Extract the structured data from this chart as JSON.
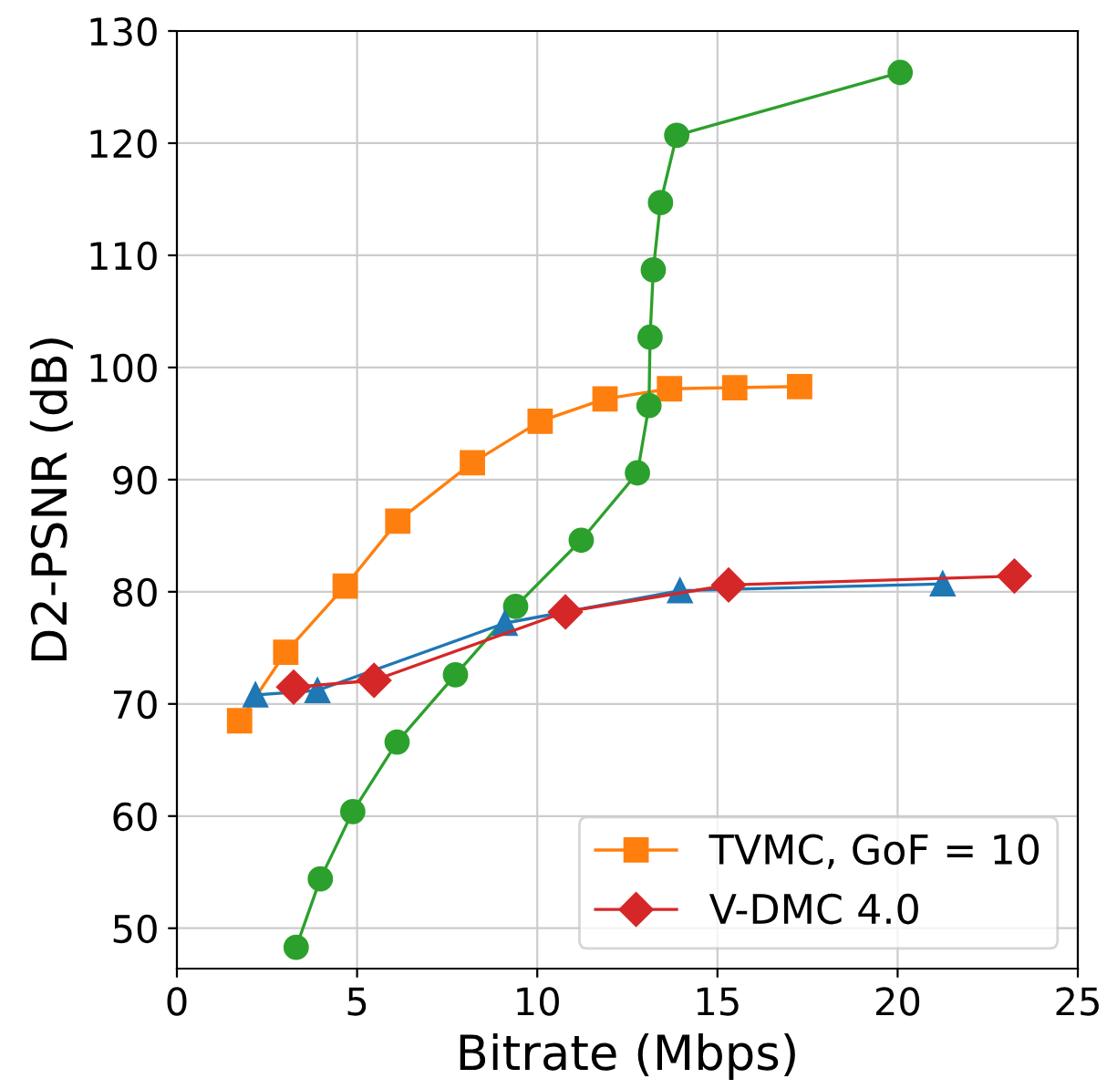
{
  "chart_data": {
    "type": "line",
    "xlabel": "Bitrate (Mbps)",
    "ylabel": "D2-PSNR (dB)",
    "xlim": [
      0,
      25
    ],
    "xticks": [
      0,
      5,
      10,
      15,
      20,
      25
    ],
    "ylim": [
      46.4,
      130
    ],
    "yticks": [
      50,
      60,
      70,
      80,
      90,
      100,
      110,
      120,
      130
    ],
    "grid": true,
    "legend": "bottom right",
    "series": [
      {
        "name": "TVMC, GoF = 10",
        "color": "#ff7f0e",
        "marker": "square",
        "x": [
          1.74,
          3.02,
          4.67,
          6.13,
          8.2,
          10.08,
          11.88,
          13.67,
          15.48,
          17.28
        ],
        "values": [
          68.5,
          74.6,
          80.5,
          86.3,
          91.5,
          95.2,
          97.2,
          98.1,
          98.2,
          98.3
        ]
      },
      {
        "color": "#2ca02c",
        "marker": "circle",
        "x": [
          3.31,
          3.98,
          4.88,
          6.11,
          7.73,
          9.4,
          11.22,
          12.78,
          13.1,
          13.13,
          13.22,
          13.42,
          13.87,
          20.07
        ],
        "values": [
          48.3,
          54.4,
          60.4,
          66.6,
          72.6,
          78.7,
          84.6,
          90.6,
          96.6,
          102.7,
          108.7,
          114.7,
          120.7,
          126.3
        ]
      },
      {
        "color": "#1f77b4",
        "marker": "triangle",
        "x": [
          2.18,
          3.9,
          9.1,
          13.96,
          21.25
        ],
        "values": [
          70.8,
          71.2,
          77.2,
          80.1,
          80.7
        ]
      },
      {
        "name": "V-DMC 4.0",
        "color": "#d62728",
        "marker": "diamond",
        "x": [
          3.24,
          5.47,
          10.78,
          15.31,
          23.24
        ],
        "values": [
          71.5,
          72.1,
          78.2,
          80.6,
          81.4
        ]
      }
    ]
  }
}
